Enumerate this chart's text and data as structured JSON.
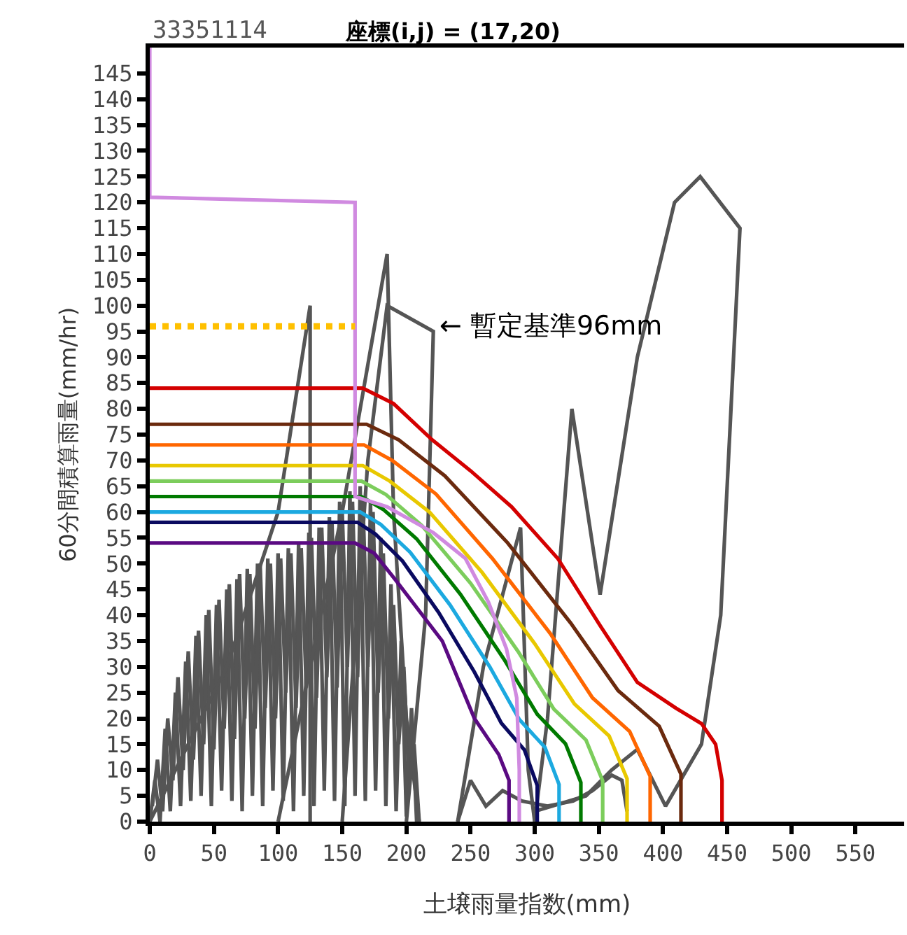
{
  "chart_data": {
    "type": "line",
    "title": "33351114",
    "subtitle": "座標(i,j) = (17,20)",
    "xlabel": "土壌雨量指数(mm)",
    "ylabel": "60分間積算雨量(mm/hr)",
    "xlim": [
      0,
      588
    ],
    "ylim": [
      0,
      150
    ],
    "xticks": [
      0,
      50,
      100,
      150,
      200,
      250,
      300,
      350,
      400,
      450,
      500,
      550
    ],
    "yticks": [
      0,
      5,
      10,
      15,
      20,
      25,
      30,
      35,
      40,
      45,
      50,
      55,
      60,
      65,
      70,
      75,
      80,
      85,
      90,
      95,
      100,
      105,
      110,
      115,
      120,
      125,
      130,
      135,
      140,
      145
    ],
    "marker": "none",
    "line_style": "solid",
    "annotations": [
      {
        "text": "← 暫定基準96mm",
        "x": 224,
        "y": 96
      }
    ],
    "series": [
      {
        "color": "#555555",
        "x": [
          0,
          4,
          8,
          12,
          16,
          20,
          24,
          28,
          32,
          36,
          40,
          44,
          48,
          52,
          56,
          60,
          64,
          68,
          72,
          76,
          80,
          84,
          88,
          92,
          96,
          100,
          104,
          108,
          112,
          116,
          120,
          124,
          128,
          132,
          136,
          140,
          144,
          148,
          152,
          156,
          160,
          164,
          168,
          172,
          176,
          180,
          184,
          188,
          192,
          196,
          200,
          204,
          208,
          null,
          2,
          6,
          10,
          14,
          18,
          22,
          26,
          30,
          34,
          38,
          42,
          46,
          50,
          54,
          58,
          62,
          66,
          70,
          74,
          78,
          82,
          86,
          90,
          94,
          98,
          102,
          106,
          110,
          114,
          118,
          122,
          126,
          130,
          134,
          138,
          142,
          146,
          150,
          154,
          158,
          162,
          166,
          170,
          174,
          178,
          182,
          186,
          190,
          194,
          198,
          202,
          206,
          210,
          null,
          0,
          60,
          100,
          125,
          125,
          null,
          100,
          150,
          185,
          190,
          200,
          210,
          null,
          150,
          170,
          185,
          221,
          215,
          200,
          null,
          240,
          260,
          289,
          295,
          300,
          null,
          240,
          250,
          262,
          275,
          290,
          310,
          330,
          345,
          360,
          368,
          372,
          null,
          300,
          310,
          329,
          351,
          380,
          409,
          429,
          460,
          445,
          430,
          402,
          380,
          360,
          340,
          300
        ],
        "values": [
          0,
          8,
          0,
          18,
          2,
          25,
          3,
          31,
          4,
          36,
          5,
          40,
          3,
          42,
          6,
          45,
          4,
          47,
          2,
          49,
          5,
          50,
          3,
          51,
          6,
          52,
          4,
          53,
          2,
          54,
          5,
          56,
          3,
          57,
          6,
          59,
          4,
          62,
          3,
          64,
          5,
          65,
          4,
          62,
          6,
          55,
          3,
          46,
          2,
          35,
          1,
          22,
          0,
          null,
          3,
          12,
          2,
          20,
          8,
          28,
          10,
          33,
          12,
          37,
          15,
          41,
          14,
          43,
          18,
          46,
          16,
          48,
          20,
          48,
          18,
          50,
          22,
          50,
          20,
          51,
          25,
          52,
          22,
          53,
          26,
          55,
          24,
          57,
          28,
          58,
          26,
          60,
          30,
          62,
          28,
          63,
          30,
          60,
          25,
          52,
          20,
          42,
          15,
          30,
          8,
          15,
          0,
          null,
          0,
          30,
          60,
          100,
          0,
          null,
          0,
          60,
          110,
          60,
          20,
          0,
          null,
          0,
          70,
          100,
          95,
          40,
          0,
          null,
          0,
          30,
          57,
          10,
          0,
          null,
          0,
          8,
          3,
          6,
          4,
          3,
          4,
          6,
          9,
          8,
          2,
          null,
          0,
          20,
          80,
          44,
          90,
          120,
          125,
          115,
          40,
          15,
          3,
          14,
          10,
          5,
          2
        ]
      },
      {
        "color": "#d40000",
        "x": [
          0,
          166,
          190,
          220,
          250,
          282,
          318,
          351,
          380,
          410,
          430,
          441,
          446,
          446
        ],
        "values": [
          84,
          84,
          81,
          74,
          68,
          61,
          51,
          38,
          27,
          22,
          19,
          15,
          8,
          0
        ]
      },
      {
        "color": "#6b2a0e",
        "x": [
          0,
          169,
          194,
          230,
          279,
          328,
          365,
          397,
          414,
          414
        ],
        "values": [
          77,
          77,
          74,
          67,
          54,
          38.5,
          25.4,
          18.5,
          9.2,
          0
        ]
      },
      {
        "color": "#ff6600",
        "x": [
          0,
          167,
          189,
          223,
          267,
          312,
          345,
          374,
          390,
          390
        ],
        "values": [
          73,
          73,
          70,
          63.5,
          51,
          36.5,
          24,
          17.5,
          8.8,
          0
        ]
      },
      {
        "color": "#e8c800",
        "x": [
          0,
          166,
          187,
          218,
          259,
          300,
          331,
          358,
          372,
          372
        ],
        "values": [
          69,
          69,
          66,
          60,
          48.3,
          34.5,
          22.8,
          16.6,
          8.3,
          0
        ]
      },
      {
        "color": "#7ccd5c",
        "x": [
          0,
          165,
          184,
          212,
          250,
          287,
          315,
          340,
          353,
          353
        ],
        "values": [
          66,
          66,
          63.4,
          57.4,
          46.2,
          33,
          21.8,
          15.8,
          7.9,
          0
        ]
      },
      {
        "color": "#007a00",
        "x": [
          0,
          165,
          182,
          208,
          242,
          276,
          302,
          324,
          336,
          336
        ],
        "values": [
          63,
          63,
          60.5,
          54.8,
          44.1,
          31.5,
          20.8,
          15.1,
          7.6,
          0
        ]
      },
      {
        "color": "#1ca9e0",
        "x": [
          0,
          164,
          180,
          203,
          234,
          265,
          288,
          308,
          319,
          319
        ],
        "values": [
          60,
          60,
          57.6,
          52.2,
          42,
          30,
          19.8,
          14.4,
          7.2,
          0
        ]
      },
      {
        "color": "#0a0a60",
        "x": [
          0,
          162,
          176,
          197,
          225,
          253,
          274,
          292,
          302,
          302
        ],
        "values": [
          58,
          58,
          55.7,
          50.5,
          40.6,
          29,
          19.1,
          13.9,
          7,
          0
        ]
      },
      {
        "color": "#5a0a82",
        "x": [
          0,
          160,
          175,
          191,
          228,
          253,
          272,
          280,
          280
        ],
        "values": [
          54,
          54,
          52,
          47,
          35,
          20,
          13,
          8,
          0
        ]
      },
      {
        "color": "#d08ae0",
        "x": [
          0,
          0,
          160,
          160,
          185,
          221,
          246,
          264,
          278,
          286,
          288,
          288
        ],
        "values": [
          150,
          121,
          120,
          63,
          61,
          56,
          51,
          42.5,
          33.5,
          24,
          10,
          0
        ]
      },
      {
        "color": "#ffc000",
        "line_style": "dotted",
        "x": [
          0,
          160
        ],
        "values": [
          96,
          96
        ]
      }
    ]
  }
}
